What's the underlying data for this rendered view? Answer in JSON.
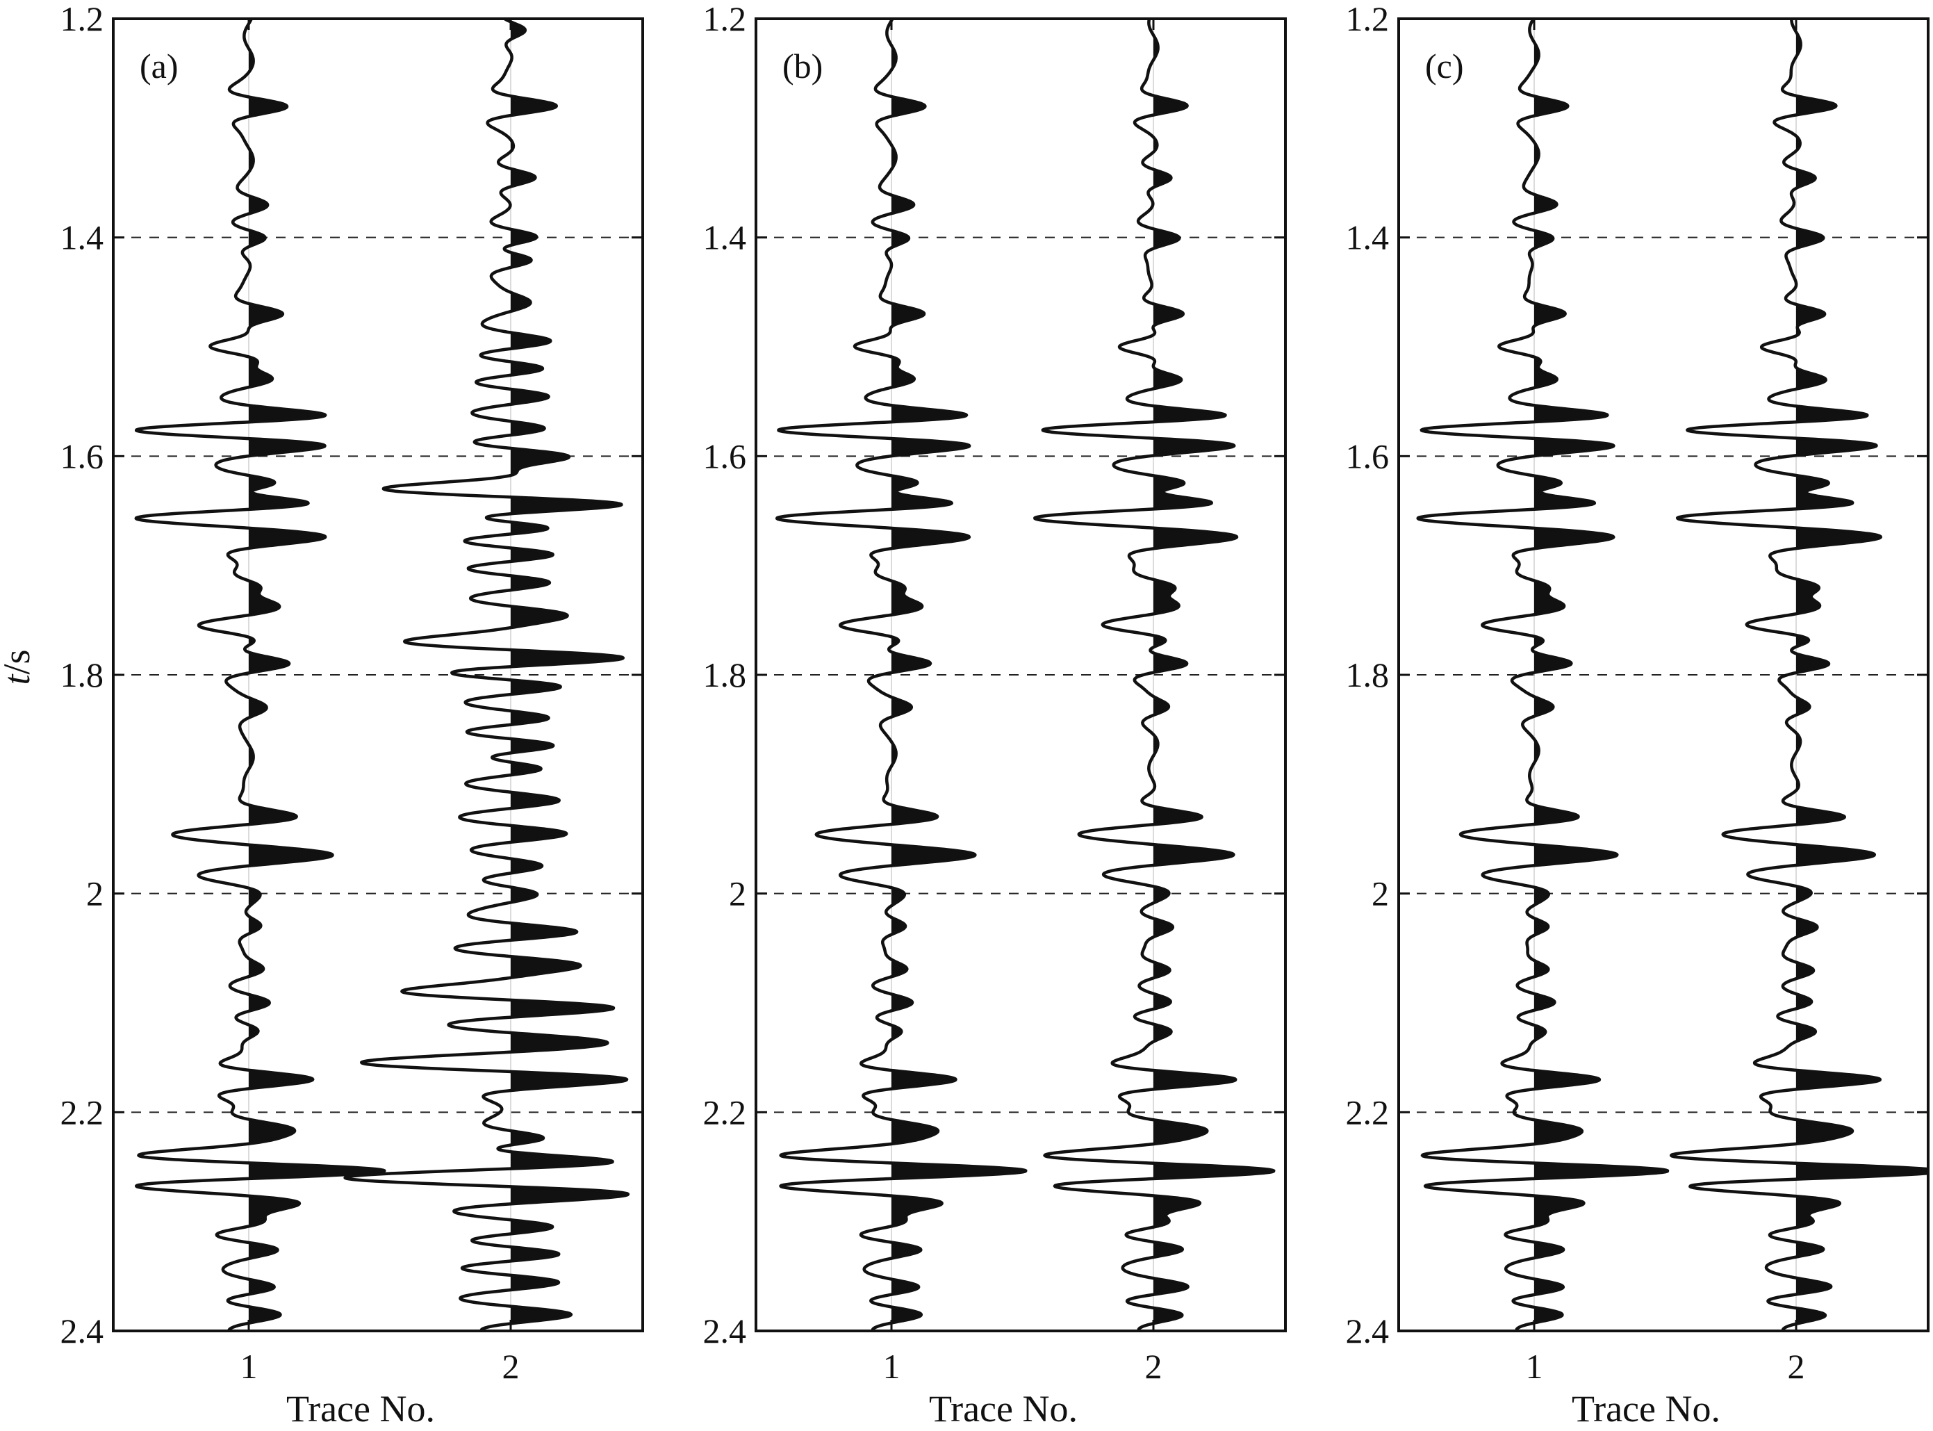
{
  "figure": {
    "ylabel_italic": "t",
    "ylabel_rest": "/s"
  },
  "chart_data": [
    {
      "type": "line",
      "panel_label": "(a)",
      "xlabel": "Trace No.",
      "x_ticks": [
        "1",
        "2"
      ],
      "y_ticks": [
        "1.2",
        "1.4",
        "1.6",
        "1.8",
        "2",
        "2.2",
        "2.4"
      ],
      "ylim": [
        1.2,
        2.4
      ],
      "y_inverted": true,
      "dashed_gridlines_at": [
        1.4,
        1.6,
        1.8,
        2.0,
        2.2
      ],
      "fill": "positive lobes filled black (wiggle-variable-area)",
      "series": [
        {
          "trace": 1,
          "events": [
            {
              "t": 1.28,
              "a": 0.26
            },
            {
              "t": 1.37,
              "a": 0.12
            },
            {
              "t": 1.4,
              "a": 0.16
            },
            {
              "t": 1.47,
              "a": 0.22
            },
            {
              "t": 1.5,
              "a": -0.28
            },
            {
              "t": 1.53,
              "a": 0.2
            },
            {
              "t": 1.565,
              "a": 0.42
            },
            {
              "t": 1.575,
              "a": -0.55
            },
            {
              "t": 1.59,
              "a": 0.38
            },
            {
              "t": 1.625,
              "a": 0.32
            },
            {
              "t": 1.655,
              "a": -0.62
            },
            {
              "t": 1.645,
              "a": 0.36
            },
            {
              "t": 1.675,
              "a": 0.42
            },
            {
              "t": 1.72,
              "a": 0.2
            },
            {
              "t": 1.735,
              "a": 0.18
            },
            {
              "t": 1.755,
              "a": -0.3
            },
            {
              "t": 1.79,
              "a": 0.28
            },
            {
              "t": 1.83,
              "a": 0.1
            },
            {
              "t": 1.93,
              "a": 0.22
            },
            {
              "t": 1.945,
              "a": -0.3
            },
            {
              "t": 1.965,
              "a": 0.45
            },
            {
              "t": 1.985,
              "a": -0.2
            },
            {
              "t": 2.03,
              "a": 0.12
            },
            {
              "t": 2.07,
              "a": 0.12
            },
            {
              "t": 2.1,
              "a": 0.14
            },
            {
              "t": 2.125,
              "a": 0.12
            },
            {
              "t": 2.17,
              "a": 0.52
            },
            {
              "t": 2.215,
              "a": 0.3
            },
            {
              "t": 2.24,
              "a": -0.6
            },
            {
              "t": 2.255,
              "a": 0.65
            },
            {
              "t": 2.265,
              "a": -0.55
            },
            {
              "t": 2.285,
              "a": 0.32
            },
            {
              "t": 2.3,
              "a": 0.3
            },
            {
              "t": 2.325,
              "a": 0.22
            },
            {
              "t": 2.36,
              "a": 0.24
            },
            {
              "t": 2.385,
              "a": 0.26
            }
          ]
        },
        {
          "trace": 2,
          "events": [
            {
              "t": 1.21,
              "a": 0.14
            },
            {
              "t": 1.28,
              "a": 0.32
            },
            {
              "t": 1.345,
              "a": 0.22
            },
            {
              "t": 1.4,
              "a": 0.26
            },
            {
              "t": 1.42,
              "a": 0.22
            },
            {
              "t": 1.46,
              "a": 0.12
            },
            {
              "t": 1.495,
              "a": 0.32
            },
            {
              "t": 1.52,
              "a": 0.34
            },
            {
              "t": 1.545,
              "a": 0.3
            },
            {
              "t": 1.575,
              "a": 0.34
            },
            {
              "t": 1.6,
              "a": 0.44
            },
            {
              "t": 1.63,
              "a": -0.66
            },
            {
              "t": 1.645,
              "a": 0.68
            },
            {
              "t": 1.665,
              "a": 0.55
            },
            {
              "t": 1.69,
              "a": 0.4
            },
            {
              "t": 1.715,
              "a": 0.36
            },
            {
              "t": 1.745,
              "a": 0.4
            },
            {
              "t": 1.77,
              "a": -0.48
            },
            {
              "t": 1.785,
              "a": 0.68
            },
            {
              "t": 1.81,
              "a": 0.45
            },
            {
              "t": 1.84,
              "a": 0.38
            },
            {
              "t": 1.865,
              "a": 0.45
            },
            {
              "t": 1.885,
              "a": 0.4
            },
            {
              "t": 1.915,
              "a": 0.36
            },
            {
              "t": 1.945,
              "a": 0.44
            },
            {
              "t": 1.975,
              "a": 0.3
            },
            {
              "t": 2.0,
              "a": 0.2
            },
            {
              "t": 2.035,
              "a": 0.52
            },
            {
              "t": 2.065,
              "a": 0.5
            },
            {
              "t": 2.09,
              "a": -0.55
            },
            {
              "t": 2.105,
              "a": 0.55
            },
            {
              "t": 2.135,
              "a": 0.48
            },
            {
              "t": 2.155,
              "a": -0.7
            },
            {
              "t": 2.17,
              "a": 0.58
            },
            {
              "t": 2.225,
              "a": 0.38
            },
            {
              "t": 2.245,
              "a": 0.6
            },
            {
              "t": 2.26,
              "a": -0.72
            },
            {
              "t": 2.275,
              "a": 0.56
            },
            {
              "t": 2.305,
              "a": 0.4
            },
            {
              "t": 2.33,
              "a": 0.45
            },
            {
              "t": 2.355,
              "a": 0.42
            },
            {
              "t": 2.385,
              "a": 0.5
            }
          ]
        }
      ]
    },
    {
      "type": "line",
      "panel_label": "(b)",
      "xlabel": "Trace No.",
      "x_ticks": [
        "1",
        "2"
      ],
      "y_ticks": [
        "1.2",
        "1.4",
        "1.6",
        "1.8",
        "2",
        "2.2",
        "2.4"
      ],
      "ylim": [
        1.2,
        2.4
      ],
      "y_inverted": true,
      "dashed_gridlines_at": [
        1.4,
        1.6,
        1.8,
        2.0,
        2.2
      ],
      "fill": "positive lobes filled black (wiggle-variable-area)",
      "series": [
        {
          "trace": 1,
          "events": [
            {
              "t": 1.28,
              "a": 0.22
            },
            {
              "t": 1.37,
              "a": 0.14
            },
            {
              "t": 1.4,
              "a": 0.16
            },
            {
              "t": 1.47,
              "a": 0.22
            },
            {
              "t": 1.5,
              "a": -0.28
            },
            {
              "t": 1.53,
              "a": 0.2
            },
            {
              "t": 1.565,
              "a": 0.42
            },
            {
              "t": 1.575,
              "a": -0.55
            },
            {
              "t": 1.59,
              "a": 0.38
            },
            {
              "t": 1.625,
              "a": 0.32
            },
            {
              "t": 1.655,
              "a": -0.62
            },
            {
              "t": 1.645,
              "a": 0.36
            },
            {
              "t": 1.675,
              "a": 0.42
            },
            {
              "t": 1.72,
              "a": 0.2
            },
            {
              "t": 1.735,
              "a": 0.18
            },
            {
              "t": 1.755,
              "a": -0.3
            },
            {
              "t": 1.79,
              "a": 0.28
            },
            {
              "t": 1.83,
              "a": 0.12
            },
            {
              "t": 1.93,
              "a": 0.22
            },
            {
              "t": 1.945,
              "a": -0.3
            },
            {
              "t": 1.965,
              "a": 0.45
            },
            {
              "t": 1.985,
              "a": -0.2
            },
            {
              "t": 2.03,
              "a": 0.14
            },
            {
              "t": 2.07,
              "a": 0.14
            },
            {
              "t": 2.1,
              "a": 0.14
            },
            {
              "t": 2.125,
              "a": 0.12
            },
            {
              "t": 2.17,
              "a": 0.52
            },
            {
              "t": 2.215,
              "a": 0.3
            },
            {
              "t": 2.24,
              "a": -0.6
            },
            {
              "t": 2.255,
              "a": 0.65
            },
            {
              "t": 2.265,
              "a": -0.55
            },
            {
              "t": 2.285,
              "a": 0.32
            },
            {
              "t": 2.3,
              "a": 0.3
            },
            {
              "t": 2.325,
              "a": 0.22
            },
            {
              "t": 2.36,
              "a": 0.24
            },
            {
              "t": 2.385,
              "a": 0.26
            }
          ]
        },
        {
          "trace": 2,
          "events": [
            {
              "t": 1.28,
              "a": 0.24
            },
            {
              "t": 1.345,
              "a": 0.16
            },
            {
              "t": 1.4,
              "a": 0.18
            },
            {
              "t": 1.47,
              "a": 0.24
            },
            {
              "t": 1.5,
              "a": -0.28
            },
            {
              "t": 1.53,
              "a": 0.22
            },
            {
              "t": 1.565,
              "a": 0.44
            },
            {
              "t": 1.575,
              "a": -0.55
            },
            {
              "t": 1.59,
              "a": 0.38
            },
            {
              "t": 1.625,
              "a": 0.32
            },
            {
              "t": 1.655,
              "a": -0.62
            },
            {
              "t": 1.645,
              "a": 0.36
            },
            {
              "t": 1.675,
              "a": 0.42
            },
            {
              "t": 1.72,
              "a": 0.22
            },
            {
              "t": 1.735,
              "a": 0.18
            },
            {
              "t": 1.755,
              "a": -0.3
            },
            {
              "t": 1.79,
              "a": 0.28
            },
            {
              "t": 1.83,
              "a": 0.12
            },
            {
              "t": 1.93,
              "a": 0.26
            },
            {
              "t": 1.945,
              "a": -0.32
            },
            {
              "t": 1.965,
              "a": 0.45
            },
            {
              "t": 1.985,
              "a": -0.2
            },
            {
              "t": 2.03,
              "a": 0.16
            },
            {
              "t": 2.07,
              "a": 0.16
            },
            {
              "t": 2.1,
              "a": 0.14
            },
            {
              "t": 2.125,
              "a": 0.14
            },
            {
              "t": 2.17,
              "a": 0.62
            },
            {
              "t": 2.215,
              "a": 0.32
            },
            {
              "t": 2.24,
              "a": -0.58
            },
            {
              "t": 2.255,
              "a": 0.56
            },
            {
              "t": 2.265,
              "a": -0.52
            },
            {
              "t": 2.285,
              "a": 0.34
            },
            {
              "t": 2.3,
              "a": 0.32
            },
            {
              "t": 2.325,
              "a": 0.24
            },
            {
              "t": 2.36,
              "a": 0.26
            },
            {
              "t": 2.385,
              "a": 0.28
            }
          ]
        }
      ]
    },
    {
      "type": "line",
      "panel_label": "(c)",
      "xlabel": "Trace No.",
      "x_ticks": [
        "1",
        "2"
      ],
      "y_ticks": [
        "1.2",
        "1.4",
        "1.6",
        "1.8",
        "2",
        "2.2",
        "2.4"
      ],
      "ylim": [
        1.2,
        2.4
      ],
      "y_inverted": true,
      "dashed_gridlines_at": [
        1.4,
        1.6,
        1.8,
        2.0,
        2.2
      ],
      "fill": "positive lobes filled black (wiggle-variable-area)",
      "series": [
        {
          "trace": 1,
          "events": [
            {
              "t": 1.28,
              "a": 0.22
            },
            {
              "t": 1.37,
              "a": 0.14
            },
            {
              "t": 1.4,
              "a": 0.16
            },
            {
              "t": 1.47,
              "a": 0.22
            },
            {
              "t": 1.5,
              "a": -0.28
            },
            {
              "t": 1.53,
              "a": 0.2
            },
            {
              "t": 1.565,
              "a": 0.42
            },
            {
              "t": 1.575,
              "a": -0.55
            },
            {
              "t": 1.59,
              "a": 0.38
            },
            {
              "t": 1.625,
              "a": 0.32
            },
            {
              "t": 1.655,
              "a": -0.62
            },
            {
              "t": 1.645,
              "a": 0.36
            },
            {
              "t": 1.675,
              "a": 0.42
            },
            {
              "t": 1.72,
              "a": 0.2
            },
            {
              "t": 1.735,
              "a": 0.18
            },
            {
              "t": 1.755,
              "a": -0.3
            },
            {
              "t": 1.79,
              "a": 0.28
            },
            {
              "t": 1.83,
              "a": 0.12
            },
            {
              "t": 1.93,
              "a": 0.22
            },
            {
              "t": 1.945,
              "a": -0.3
            },
            {
              "t": 1.965,
              "a": 0.45
            },
            {
              "t": 1.985,
              "a": -0.2
            },
            {
              "t": 2.03,
              "a": 0.14
            },
            {
              "t": 2.07,
              "a": 0.14
            },
            {
              "t": 2.1,
              "a": 0.14
            },
            {
              "t": 2.125,
              "a": 0.12
            },
            {
              "t": 2.17,
              "a": 0.52
            },
            {
              "t": 2.215,
              "a": 0.3
            },
            {
              "t": 2.24,
              "a": -0.6
            },
            {
              "t": 2.255,
              "a": 0.65
            },
            {
              "t": 2.265,
              "a": -0.55
            },
            {
              "t": 2.285,
              "a": 0.32
            },
            {
              "t": 2.3,
              "a": 0.3
            },
            {
              "t": 2.325,
              "a": 0.22
            },
            {
              "t": 2.36,
              "a": 0.24
            },
            {
              "t": 2.385,
              "a": 0.26
            }
          ]
        },
        {
          "trace": 2,
          "events": [
            {
              "t": 1.28,
              "a": 0.3
            },
            {
              "t": 1.345,
              "a": 0.16
            },
            {
              "t": 1.4,
              "a": 0.18
            },
            {
              "t": 1.47,
              "a": 0.24
            },
            {
              "t": 1.5,
              "a": -0.28
            },
            {
              "t": 1.53,
              "a": 0.22
            },
            {
              "t": 1.565,
              "a": 0.44
            },
            {
              "t": 1.575,
              "a": -0.55
            },
            {
              "t": 1.59,
              "a": 0.38
            },
            {
              "t": 1.625,
              "a": 0.32
            },
            {
              "t": 1.655,
              "a": -0.62
            },
            {
              "t": 1.645,
              "a": 0.36
            },
            {
              "t": 1.675,
              "a": 0.42
            },
            {
              "t": 1.72,
              "a": 0.22
            },
            {
              "t": 1.735,
              "a": 0.18
            },
            {
              "t": 1.755,
              "a": -0.3
            },
            {
              "t": 1.79,
              "a": 0.28
            },
            {
              "t": 1.83,
              "a": 0.12
            },
            {
              "t": 1.93,
              "a": 0.26
            },
            {
              "t": 1.945,
              "a": -0.32
            },
            {
              "t": 1.965,
              "a": 0.45
            },
            {
              "t": 1.985,
              "a": -0.2
            },
            {
              "t": 2.03,
              "a": 0.16
            },
            {
              "t": 2.07,
              "a": 0.16
            },
            {
              "t": 2.1,
              "a": 0.14
            },
            {
              "t": 2.125,
              "a": 0.14
            },
            {
              "t": 2.17,
              "a": 0.62
            },
            {
              "t": 2.215,
              "a": 0.32
            },
            {
              "t": 2.24,
              "a": -0.62
            },
            {
              "t": 2.255,
              "a": 0.72
            },
            {
              "t": 2.265,
              "a": -0.52
            },
            {
              "t": 2.285,
              "a": 0.34
            },
            {
              "t": 2.3,
              "a": 0.32
            },
            {
              "t": 2.325,
              "a": 0.24
            },
            {
              "t": 2.36,
              "a": 0.26
            },
            {
              "t": 2.385,
              "a": 0.28
            }
          ]
        }
      ]
    }
  ]
}
